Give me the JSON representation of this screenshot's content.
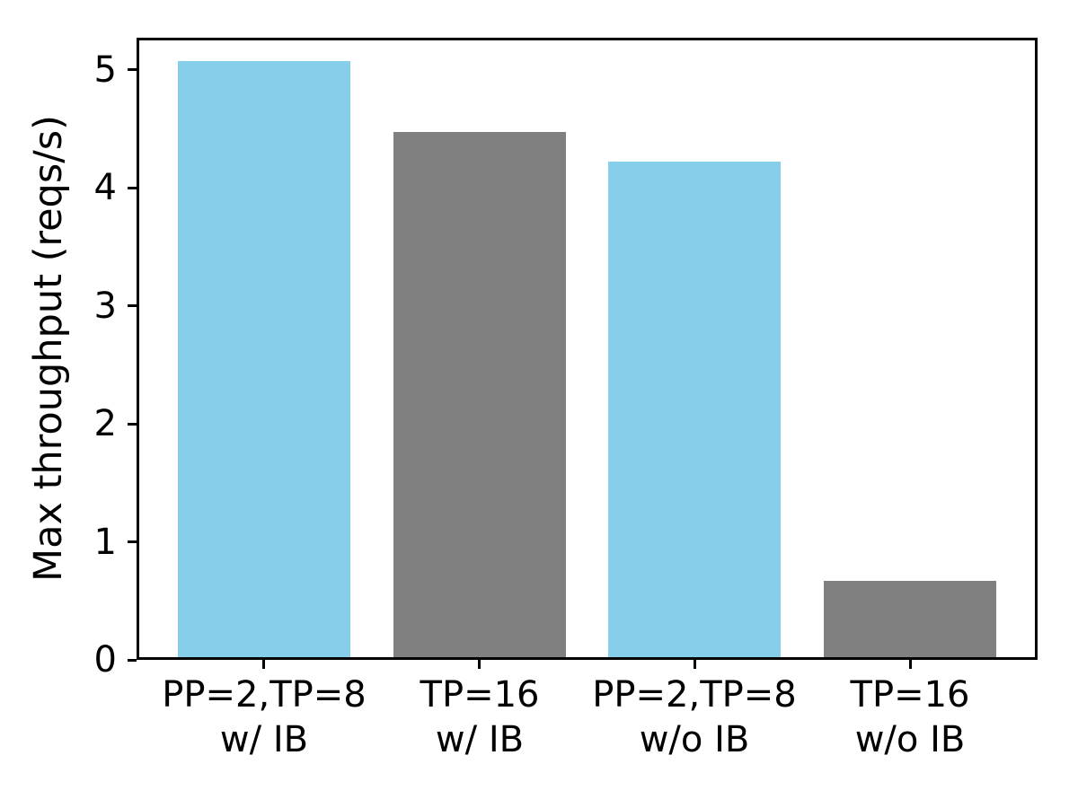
{
  "figure": {
    "background": "#ffffff",
    "axis_color": "#000000"
  },
  "chart_data": {
    "type": "bar",
    "title": "",
    "xlabel": "",
    "ylabel": "Max throughput (reqs/s)",
    "ylim": [
      0,
      5.27
    ],
    "yticks": [
      0,
      1,
      2,
      3,
      4,
      5
    ],
    "grid": false,
    "legend": "none",
    "categories": [
      "PP=2,TP=8 w/ IB",
      "TP=16 w/ IB",
      "PP=2,TP=8 w/o IB",
      "TP=16 w/o IB"
    ],
    "category_lines": [
      [
        "PP=2,TP=8",
        "w/ IB"
      ],
      [
        "TP=16",
        "w/ IB"
      ],
      [
        "PP=2,TP=8",
        "w/o IB"
      ],
      [
        "TP=16",
        "w/o IB"
      ]
    ],
    "values": [
      5.05,
      4.45,
      4.2,
      0.65
    ],
    "bar_colors": [
      "#87CEEB",
      "#808080",
      "#87CEEB",
      "#808080"
    ],
    "palette": {
      "skyblue": "#87CEEB",
      "gray": "#808080"
    }
  }
}
